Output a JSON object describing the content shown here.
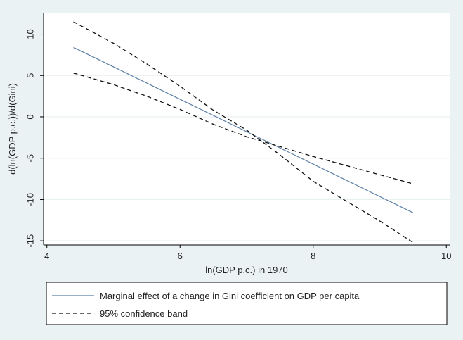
{
  "chart_data": {
    "type": "line",
    "xlabel": "ln(GDP p.c.) in 1970",
    "ylabel": "d(ln(GDP p.c.))/d(Gini)",
    "xlim": [
      3.95,
      10.05
    ],
    "ylim": [
      -15.5,
      12.6
    ],
    "x_ticks": [
      "4",
      "6",
      "8",
      "10"
    ],
    "x_tick_values": [
      4,
      6,
      8,
      10
    ],
    "y_ticks": [
      "-15",
      "-10",
      "-5",
      "0",
      "5",
      "10"
    ],
    "y_tick_values": [
      -15,
      -10,
      -5,
      0,
      5,
      10
    ],
    "grid": true,
    "legend_position": "bottom",
    "series": [
      {
        "name": "Marginal effect of a change in Gini coefficient on GDP per capita",
        "style": "solid",
        "color": "#5b7fa6",
        "x": [
          4.4,
          9.5
        ],
        "y": [
          8.4,
          -11.6
        ]
      },
      {
        "name": "95% confidence band",
        "style": "dashed",
        "color": "#111111",
        "x": [
          4.4,
          5.0,
          5.5,
          6.0,
          6.5,
          7.0,
          7.5,
          8.0,
          8.5,
          9.0,
          9.5
        ],
        "y": [
          5.3,
          3.9,
          2.5,
          0.9,
          -0.9,
          -2.4,
          -3.6,
          -4.8,
          -5.9,
          -7.0,
          -8.1
        ]
      },
      {
        "name": "",
        "style": "dashed",
        "color": "#111111",
        "x": [
          4.4,
          5.0,
          5.5,
          6.0,
          6.5,
          7.0,
          7.5,
          8.0,
          8.5,
          9.0,
          9.5
        ],
        "y": [
          11.5,
          8.9,
          6.4,
          3.7,
          0.8,
          -1.6,
          -4.6,
          -7.8,
          -10.2,
          -12.6,
          -15.2
        ]
      }
    ]
  }
}
